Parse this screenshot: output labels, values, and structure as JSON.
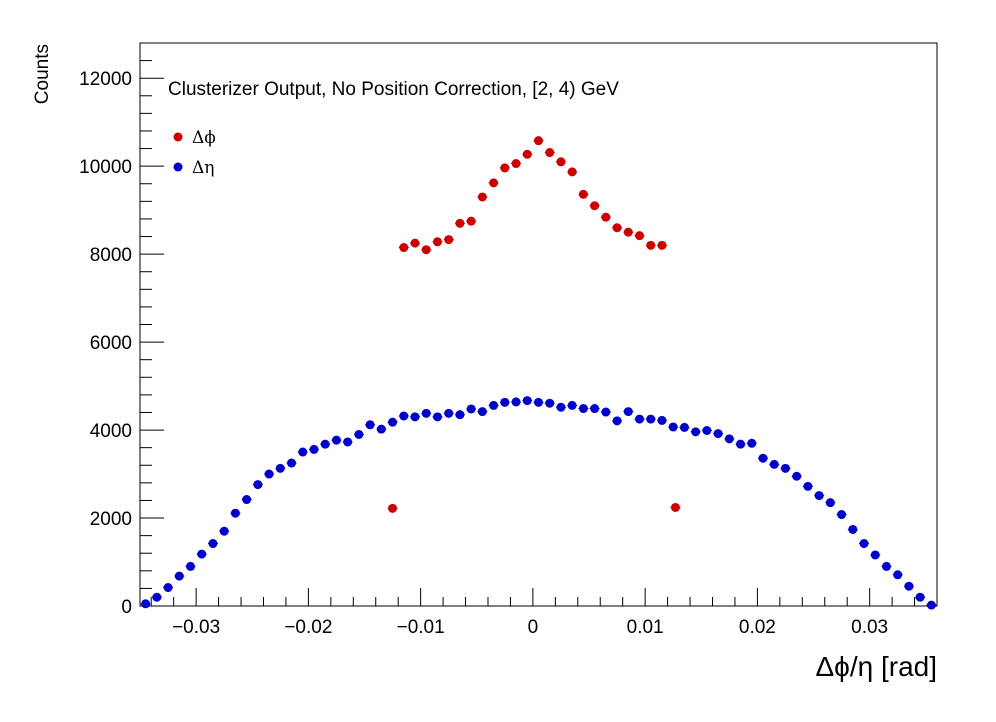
{
  "chart_data": {
    "type": "scatter",
    "title": "Clusterizer Output, No Position Correction, [2, 4) GeV",
    "xlabel": "Δϕ/η  [rad]",
    "ylabel": "Counts",
    "xlim": [
      -0.035,
      0.036
    ],
    "ylim": [
      0,
      12800
    ],
    "xticks": [
      -0.03,
      -0.02,
      -0.01,
      0,
      0.01,
      0.02,
      0.03
    ],
    "xtick_labels": [
      "−0.03",
      "−0.02",
      "−0.01",
      "0",
      "0.01",
      "0.02",
      "0.03"
    ],
    "yticks": [
      0,
      2000,
      4000,
      6000,
      8000,
      10000,
      12000
    ],
    "ytick_labels": [
      "0",
      "2000",
      "4000",
      "6000",
      "8000",
      "10000",
      "12000"
    ],
    "grid": false,
    "legend_position": "top-left",
    "series": [
      {
        "name": "Δϕ",
        "color": "#cc0000",
        "x": [
          -0.0125,
          -0.0115,
          -0.0105,
          -0.0095,
          -0.0085,
          -0.0075,
          -0.0065,
          -0.0055,
          -0.0045,
          -0.0035,
          -0.0025,
          -0.0015,
          -0.0005,
          0.0005,
          0.0015,
          0.0025,
          0.0035,
          0.0045,
          0.0055,
          0.0065,
          0.0075,
          0.0085,
          0.0095,
          0.0105,
          0.0115,
          0.0127
        ],
        "y": [
          2220,
          8150,
          8250,
          8100,
          8280,
          8330,
          8700,
          8750,
          9300,
          9620,
          9960,
          10060,
          10270,
          10580,
          10310,
          10100,
          9870,
          9360,
          9100,
          8840,
          8600,
          8500,
          8420,
          8200,
          8200,
          2240
        ]
      },
      {
        "name": "Δη",
        "color": "#0000cc",
        "x": [
          -0.0345,
          -0.0335,
          -0.0325,
          -0.0315,
          -0.0305,
          -0.0295,
          -0.0285,
          -0.0275,
          -0.0265,
          -0.0255,
          -0.0245,
          -0.0235,
          -0.0225,
          -0.0215,
          -0.0205,
          -0.0195,
          -0.0185,
          -0.0175,
          -0.0165,
          -0.0155,
          -0.0145,
          -0.0135,
          -0.0125,
          -0.0115,
          -0.0105,
          -0.0095,
          -0.0085,
          -0.0075,
          -0.0065,
          -0.0055,
          -0.0045,
          -0.0035,
          -0.0025,
          -0.0015,
          -0.0005,
          0.0005,
          0.0015,
          0.0025,
          0.0035,
          0.0045,
          0.0055,
          0.0065,
          0.0075,
          0.0085,
          0.0095,
          0.0105,
          0.0115,
          0.0125,
          0.0135,
          0.0145,
          0.0155,
          0.0165,
          0.0175,
          0.0185,
          0.0195,
          0.0205,
          0.0215,
          0.0225,
          0.0235,
          0.0245,
          0.0255,
          0.0265,
          0.0275,
          0.0285,
          0.0295,
          0.0305,
          0.0315,
          0.0325,
          0.0335,
          0.0345,
          0.0355
        ],
        "y": [
          50,
          200,
          420,
          680,
          900,
          1180,
          1420,
          1700,
          2110,
          2420,
          2760,
          3000,
          3130,
          3250,
          3500,
          3560,
          3680,
          3770,
          3730,
          3900,
          4120,
          4020,
          4180,
          4320,
          4300,
          4380,
          4300,
          4380,
          4350,
          4480,
          4420,
          4560,
          4630,
          4640,
          4670,
          4630,
          4610,
          4520,
          4560,
          4490,
          4490,
          4410,
          4210,
          4420,
          4250,
          4250,
          4220,
          4070,
          4060,
          3960,
          3990,
          3920,
          3800,
          3680,
          3700,
          3360,
          3220,
          3130,
          2950,
          2720,
          2510,
          2350,
          2080,
          1740,
          1420,
          1160,
          900,
          710,
          450,
          200,
          20
        ]
      }
    ]
  }
}
